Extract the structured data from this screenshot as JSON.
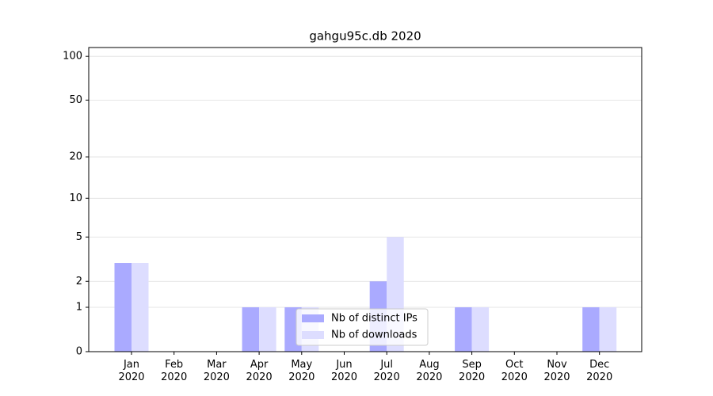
{
  "chart_data": {
    "type": "bar",
    "title": "gahgu95c.db 2020",
    "categories": [
      "Jan\n2020",
      "Feb\n2020",
      "Mar\n2020",
      "Apr\n2020",
      "May\n2020",
      "Jun\n2020",
      "Jul\n2020",
      "Aug\n2020",
      "Sep\n2020",
      "Oct\n2020",
      "Nov\n2020",
      "Dec\n2020"
    ],
    "series": [
      {
        "name": "Nb of distinct IPs",
        "color": "#aaaaff",
        "values": [
          3,
          0,
          0,
          1,
          1,
          0,
          2,
          0,
          1,
          0,
          0,
          1
        ]
      },
      {
        "name": "Nb of downloads",
        "color": "#ddddff",
        "values": [
          3,
          0,
          0,
          1,
          1,
          0,
          5,
          0,
          1,
          0,
          0,
          1
        ]
      }
    ],
    "yscale": "log1p",
    "ylim": [
      0,
      115
    ],
    "yticks": [
      0,
      1,
      2,
      5,
      10,
      20,
      50,
      100
    ],
    "grid": true,
    "legend": "lower center"
  }
}
